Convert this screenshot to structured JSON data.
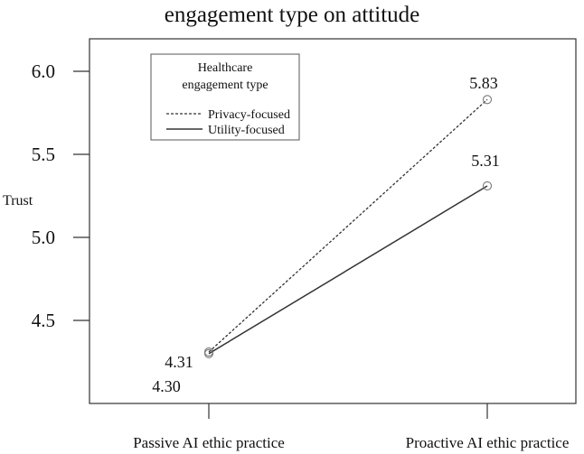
{
  "chart_data": {
    "type": "line",
    "title": "engagement type on attitude",
    "ylabel": "Trust",
    "xlabel": "",
    "categories": [
      "Passive AI ethic practice",
      "Proactive AI ethic practice"
    ],
    "ylim": [
      4.05,
      6.2
    ],
    "yticks": [
      4.5,
      5.0,
      5.5,
      6.0
    ],
    "ytick_labels": [
      "4.5",
      "5.0",
      "5.5",
      "6.0"
    ],
    "grid": false,
    "legend": {
      "title": "Healthcare engagement type",
      "placement": "top-left",
      "title_lines": [
        "Healthcare",
        "engagement type"
      ]
    },
    "series": [
      {
        "name": "Privacy-focused",
        "values": [
          4.31,
          5.83
        ],
        "labels": [
          "4.31",
          "5.83"
        ],
        "style": "dashed",
        "color": "#333333"
      },
      {
        "name": "Utility-focused",
        "values": [
          4.3,
          5.31
        ],
        "labels": [
          "4.30",
          "5.31"
        ],
        "style": "solid",
        "color": "#333333"
      }
    ]
  }
}
